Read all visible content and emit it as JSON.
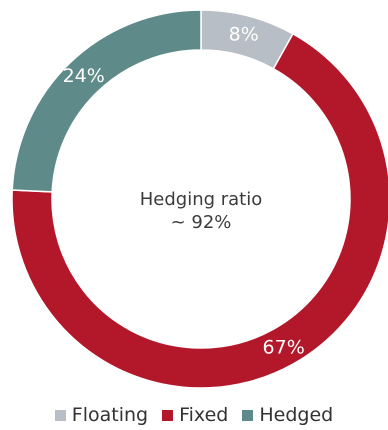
{
  "chart_data": {
    "type": "pie",
    "style": "donut",
    "center_label": {
      "line1": "Hedging ratio",
      "line2": "~ 92%"
    },
    "slices": [
      {
        "name": "Floating",
        "value": 8,
        "label": "8%",
        "color": "#b8bec5"
      },
      {
        "name": "Fixed",
        "value": 67,
        "label": "67%",
        "color": "#b3172a"
      },
      {
        "name": "Hedged",
        "value": 24,
        "label": "24%",
        "color": "#5e8a89"
      }
    ],
    "legend": {
      "position": "bottom-center",
      "items": [
        {
          "label": "Floating",
          "color": "#b8bec5"
        },
        {
          "label": "Fixed",
          "color": "#b3172a"
        },
        {
          "label": "Hedged",
          "color": "#5e8a89"
        }
      ]
    }
  }
}
